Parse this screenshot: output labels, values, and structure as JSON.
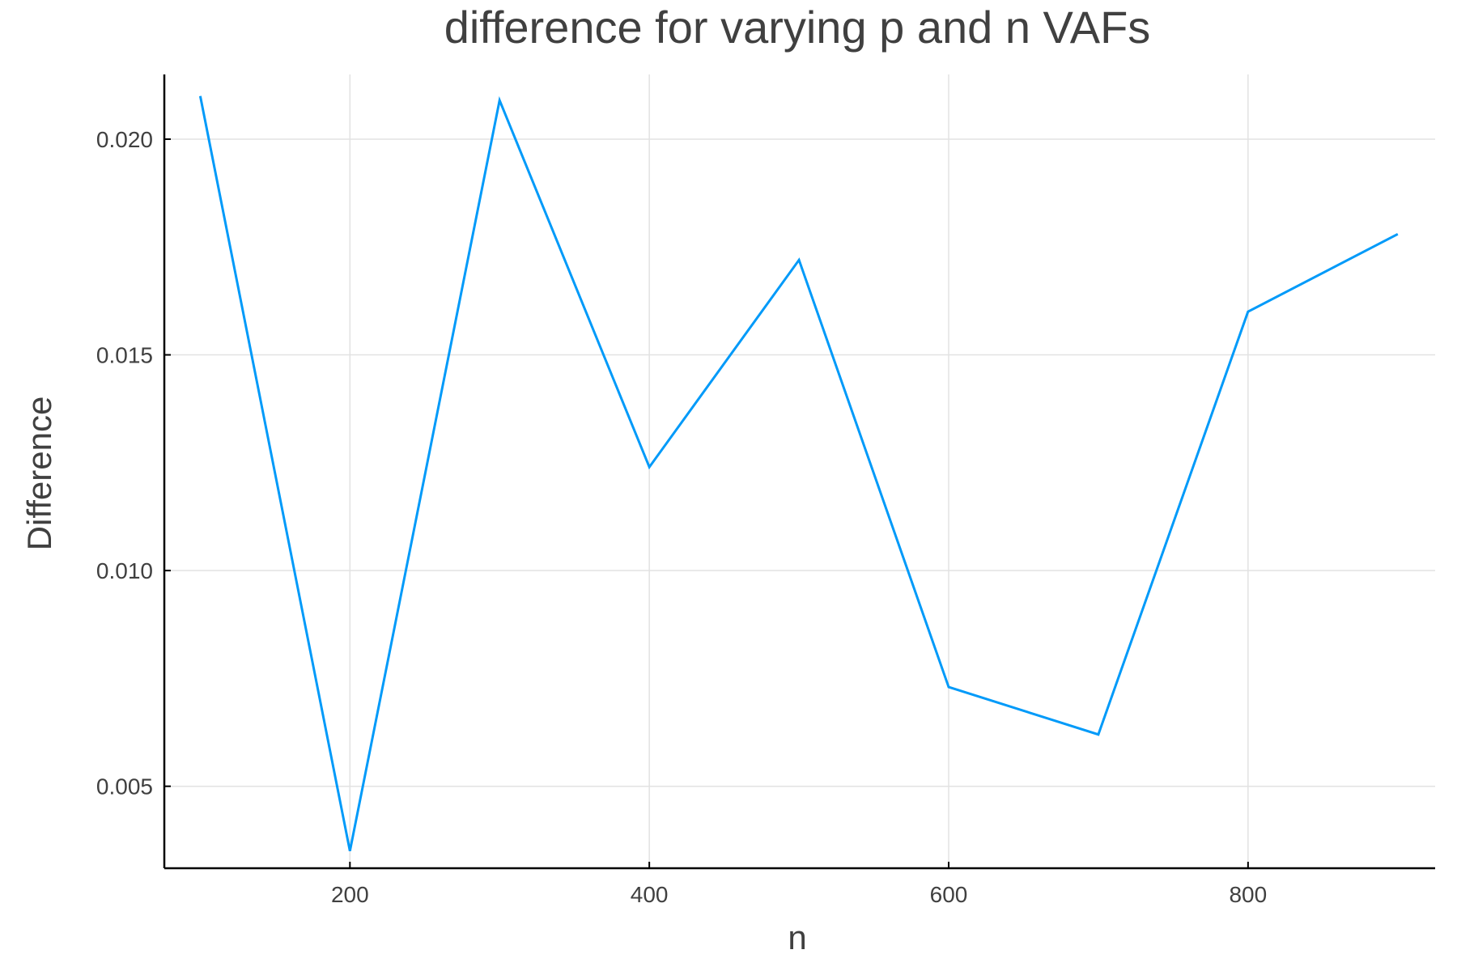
{
  "chart_data": {
    "type": "line",
    "title": "difference for varying p and n VAFs",
    "xlabel": "n",
    "ylabel": "Difference",
    "xlim": [
      76,
      925
    ],
    "ylim": [
      0.0031,
      0.0215
    ],
    "xticks": [
      200,
      400,
      600,
      800
    ],
    "xtick_labels": [
      "200",
      "400",
      "600",
      "800"
    ],
    "yticks": [
      0.005,
      0.01,
      0.015,
      0.02
    ],
    "ytick_labels": [
      "0.005",
      "0.010",
      "0.015",
      "0.020"
    ],
    "grid": true,
    "legend": "none",
    "series": [
      {
        "color": "#009af9",
        "x": [
          100,
          200,
          300,
          400,
          500,
          600,
          700,
          800,
          900
        ],
        "y": [
          0.021,
          0.0035,
          0.0209,
          0.0124,
          0.0172,
          0.0073,
          0.0062,
          0.016,
          0.0178
        ]
      }
    ]
  }
}
